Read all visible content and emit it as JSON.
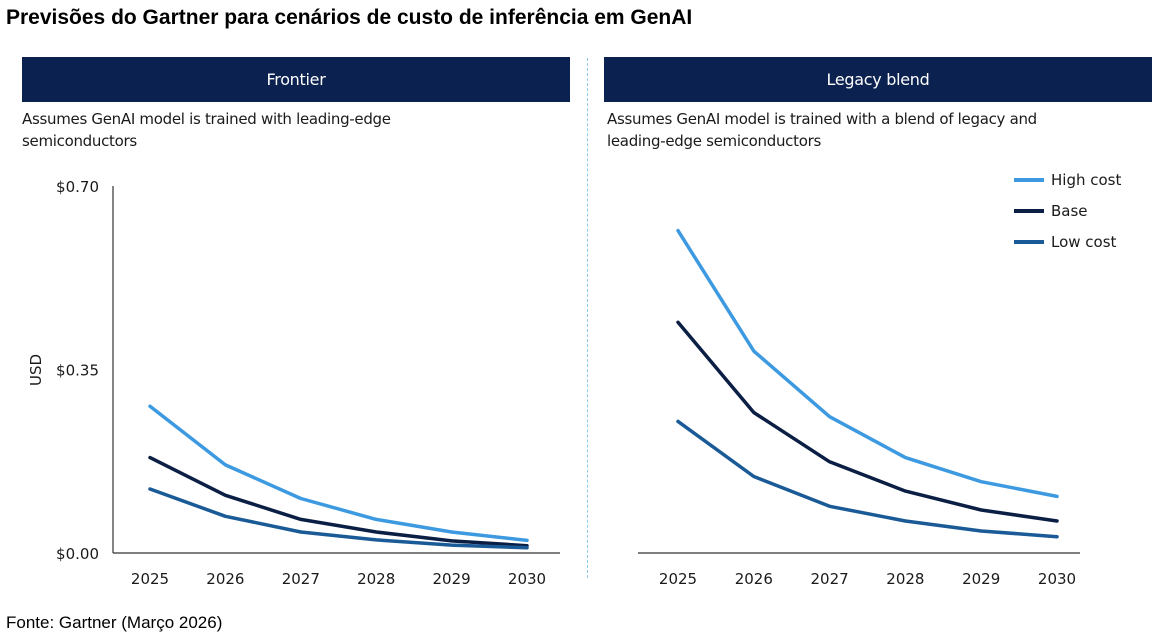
{
  "title": "Previsões do Gartner para cenários de custo de inferência em GenAI",
  "source": "Fonte: Gartner (Março 2026)",
  "colors": {
    "header_bg": "#0b2150",
    "high_cost": "#3d9ae0",
    "base": "#0b1f45",
    "low_cost": "#1a5a96",
    "axis": "#333333",
    "divider": "#8fc8e8"
  },
  "chart_data": [
    {
      "type": "line",
      "title": "Frontier",
      "subtitle": "Assumes GenAI model is trained with leading-edge semiconductors",
      "ylabel": "USD",
      "xlabel": "",
      "ylim": [
        0,
        0.7
      ],
      "yticks": [
        {
          "value": 0.0,
          "label": "$0.00"
        },
        {
          "value": 0.35,
          "label": "$0.35"
        },
        {
          "value": 0.7,
          "label": "$0.70"
        }
      ],
      "categories": [
        "2025",
        "2026",
        "2027",
        "2028",
        "2029",
        "2030"
      ],
      "series": [
        {
          "name": "High cost",
          "color_key": "high_cost",
          "values": [
            0.28,
            0.168,
            0.104,
            0.064,
            0.04,
            0.024
          ]
        },
        {
          "name": "Base",
          "color_key": "base",
          "values": [
            0.182,
            0.11,
            0.064,
            0.04,
            0.023,
            0.014
          ]
        },
        {
          "name": "Low cost",
          "color_key": "low_cost",
          "values": [
            0.122,
            0.07,
            0.04,
            0.025,
            0.015,
            0.01
          ]
        }
      ]
    },
    {
      "type": "line",
      "title": "Legacy blend",
      "subtitle": "Assumes GenAI model is trained with a blend of legacy and leading-edge semiconductors",
      "ylabel": "",
      "xlabel": "",
      "ylim": [
        0,
        0.7
      ],
      "yticks": [],
      "categories": [
        "2025",
        "2026",
        "2027",
        "2028",
        "2029",
        "2030"
      ],
      "legend": [
        "High cost",
        "Base",
        "Low cost"
      ],
      "legend_position": "top-right",
      "series": [
        {
          "name": "High cost",
          "color_key": "high_cost",
          "values": [
            0.615,
            0.385,
            0.26,
            0.182,
            0.136,
            0.108
          ]
        },
        {
          "name": "Base",
          "color_key": "base",
          "values": [
            0.44,
            0.268,
            0.174,
            0.118,
            0.082,
            0.061
          ]
        },
        {
          "name": "Low cost",
          "color_key": "low_cost",
          "values": [
            0.251,
            0.146,
            0.089,
            0.061,
            0.042,
            0.031
          ]
        }
      ]
    }
  ]
}
